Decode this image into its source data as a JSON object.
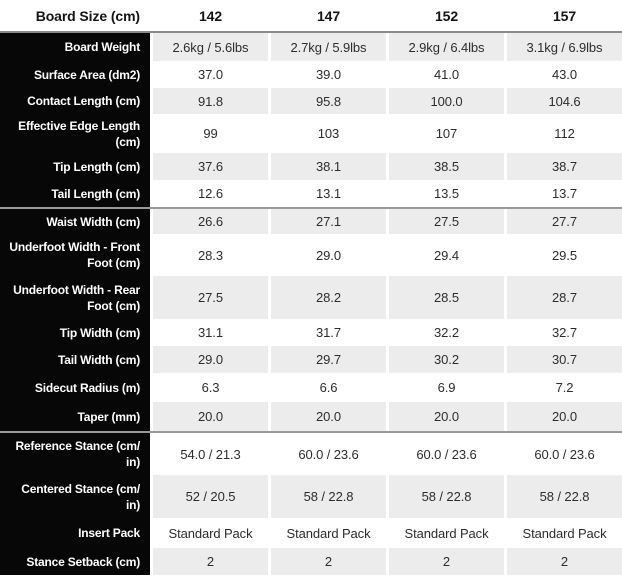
{
  "table": {
    "header": {
      "label": "Board Size (cm)",
      "columns": [
        "142",
        "147",
        "152",
        "157"
      ]
    },
    "rows": [
      {
        "label": "Board Weight",
        "values": [
          "2.6kg / 5.6lbs",
          "2.7kg / 5.9lbs",
          "2.9kg / 6.4lbs",
          "3.1kg / 6.9lbs"
        ],
        "section_start": false
      },
      {
        "label": "Surface Area (dm2)",
        "values": [
          "37.0",
          "39.0",
          "41.0",
          "43.0"
        ],
        "section_start": false
      },
      {
        "label": "Contact Length (cm)",
        "values": [
          "91.8",
          "95.8",
          "100.0",
          "104.6"
        ],
        "section_start": false
      },
      {
        "label": "Effective Edge Length\n(cm)",
        "values": [
          "99",
          "103",
          "107",
          "112"
        ],
        "section_start": false
      },
      {
        "label": "Tip Length (cm)",
        "values": [
          "37.6",
          "38.1",
          "38.5",
          "38.7"
        ],
        "section_start": false
      },
      {
        "label": "Tail Length (cm)",
        "values": [
          "12.6",
          "13.1",
          "13.5",
          "13.7"
        ],
        "section_start": false
      },
      {
        "label": "Waist Width (cm)",
        "values": [
          "26.6",
          "27.1",
          "27.5",
          "27.7"
        ],
        "section_start": true
      },
      {
        "label": "Underfoot Width - Front\nFoot (cm)",
        "values": [
          "28.3",
          "29.0",
          "29.4",
          "29.5"
        ],
        "section_start": false
      },
      {
        "label": "Underfoot Width - Rear\nFoot (cm)",
        "values": [
          "27.5",
          "28.2",
          "28.5",
          "28.7"
        ],
        "section_start": false
      },
      {
        "label": "Tip Width (cm)",
        "values": [
          "31.1",
          "31.7",
          "32.2",
          "32.7"
        ],
        "section_start": false
      },
      {
        "label": "Tail Width (cm)",
        "values": [
          "29.0",
          "29.7",
          "30.2",
          "30.7"
        ],
        "section_start": false
      },
      {
        "label": "Sidecut Radius (m)",
        "values": [
          "6.3",
          "6.6",
          "6.9",
          "7.2"
        ],
        "section_start": false
      },
      {
        "label": "Taper (mm)",
        "values": [
          "20.0",
          "20.0",
          "20.0",
          "20.0"
        ],
        "section_start": false
      },
      {
        "label": "Reference Stance (cm/\nin)",
        "values": [
          "54.0 / 21.3",
          "60.0 / 23.6",
          "60.0 / 23.6",
          "60.0 / 23.6"
        ],
        "section_start": true
      },
      {
        "label": "Centered Stance (cm/\nin)",
        "values": [
          "52 / 20.5",
          "58 / 22.8",
          "58 / 22.8",
          "58 / 22.8"
        ],
        "section_start": false
      },
      {
        "label": "Insert Pack",
        "values": [
          "Standard Pack",
          "Standard Pack",
          "Standard Pack",
          "Standard Pack"
        ],
        "section_start": false
      },
      {
        "label": "Stance Setback (cm)",
        "values": [
          "2",
          "2",
          "2",
          "2"
        ],
        "section_start": false
      }
    ]
  },
  "colors": {
    "label_column_bg": "#070707",
    "alt_row_bg": "#ececec",
    "section_divider": "#999999",
    "header_divider": "#8a8a8a",
    "value_text": "#2d2d2d"
  }
}
